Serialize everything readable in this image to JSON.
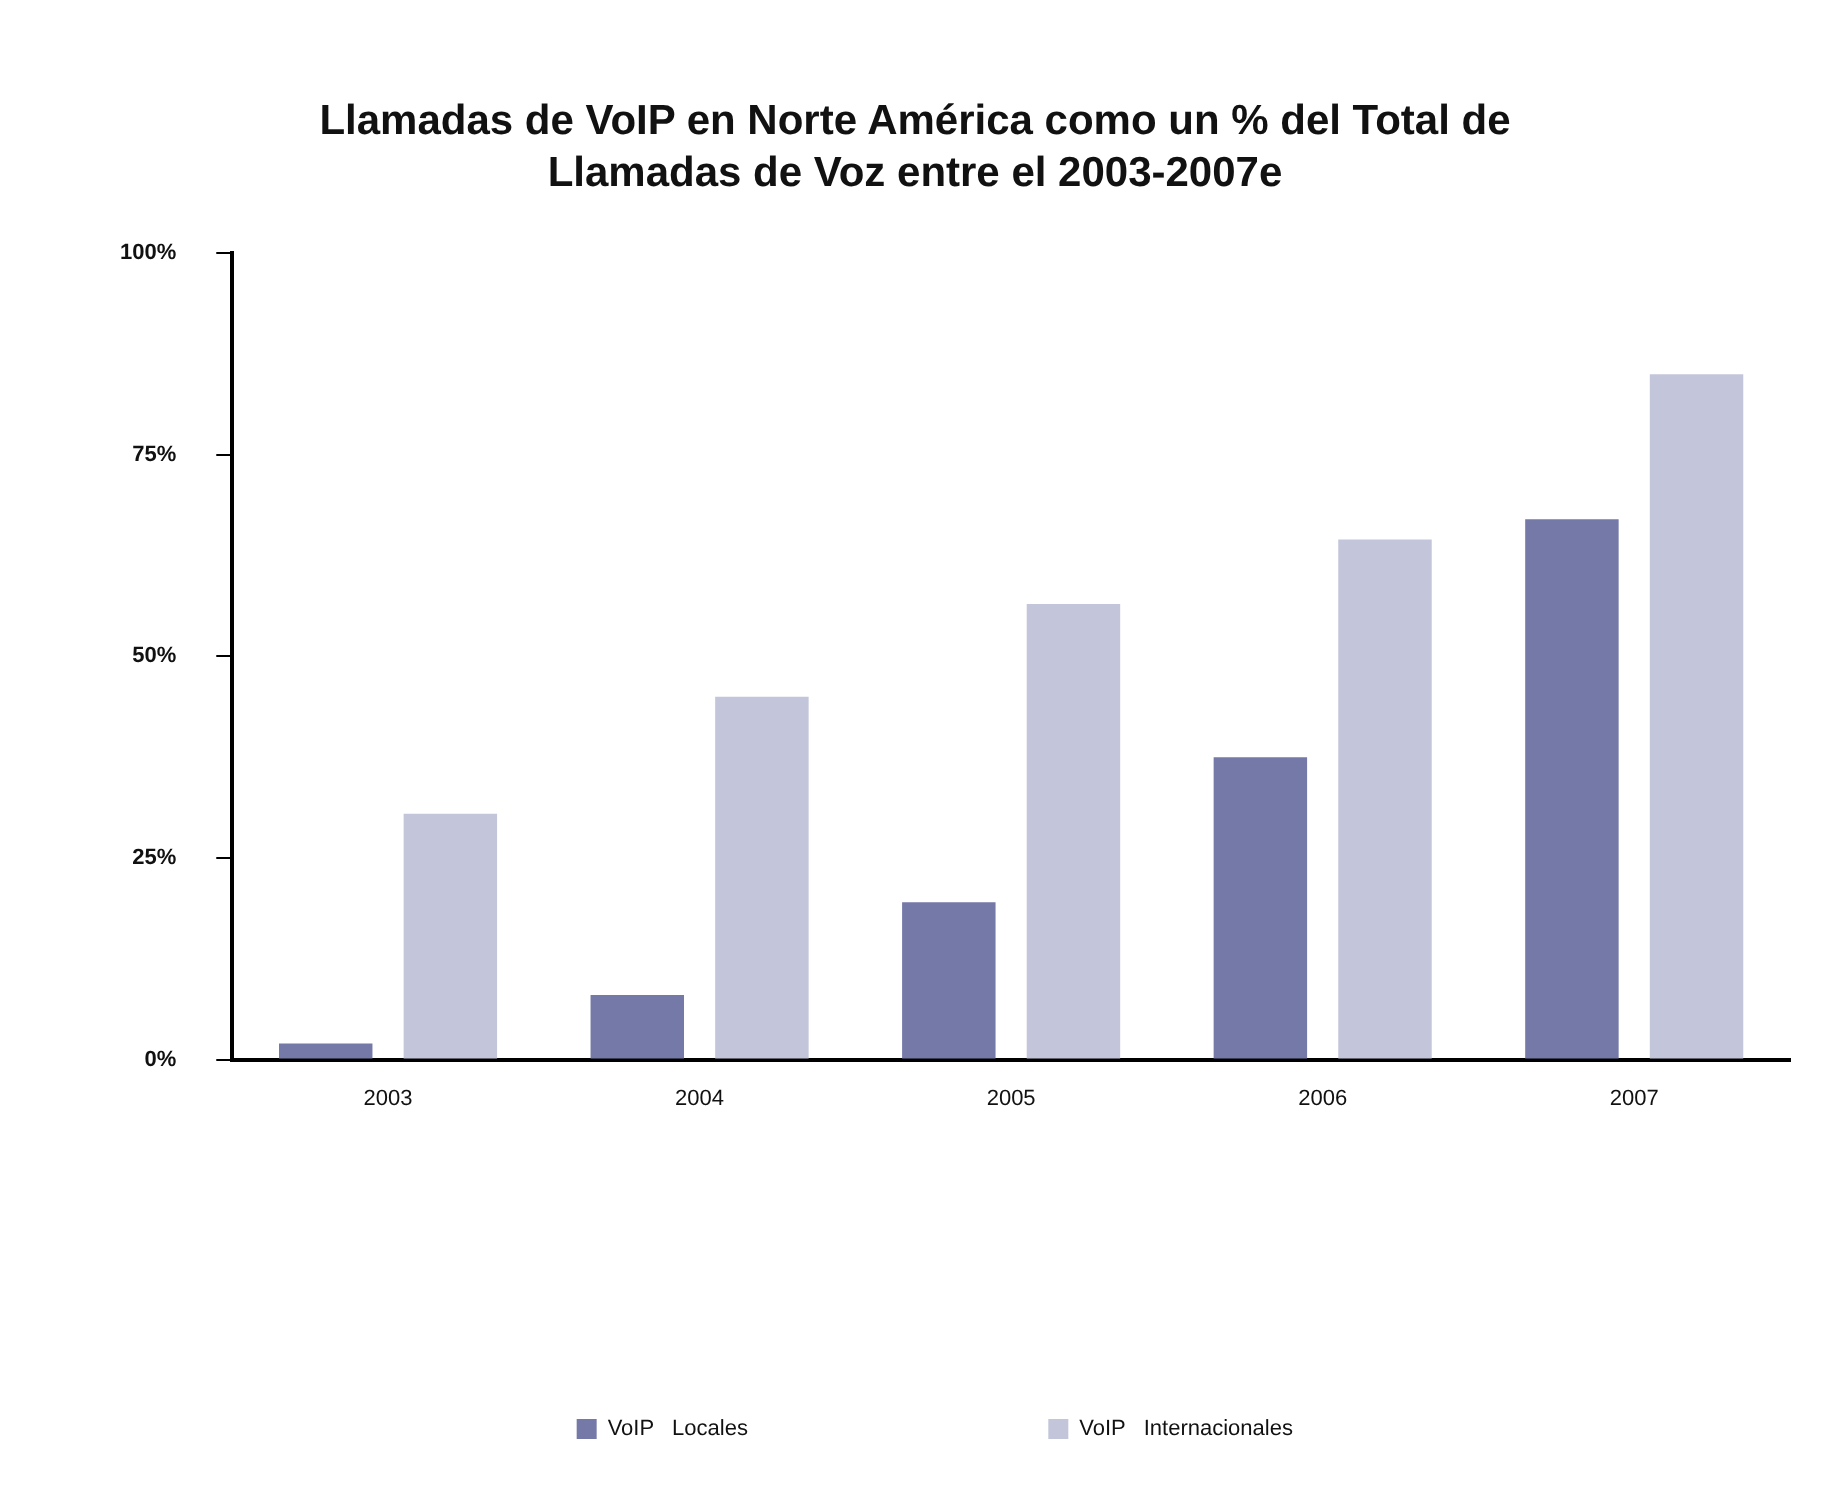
{
  "chart_data": {
    "type": "bar",
    "title": "Llamadas de VoIP en Norte América como un % del Total de Llamadas de Voz entre el 2003-2007e",
    "categories": [
      "2003",
      "2004",
      "2005",
      "2006",
      "2007"
    ],
    "series": [
      {
        "name": "VoIP   Locales",
        "color": "#7579a8",
        "values": [
          2,
          8,
          19.5,
          37.5,
          67
        ]
      },
      {
        "name": "VoIP   Internacionales",
        "color": "#c3c5da",
        "values": [
          30.5,
          45,
          56.5,
          64.5,
          85
        ]
      }
    ],
    "ylim": [
      0,
      100
    ],
    "yticks": [
      {
        "value": 0,
        "label": "0%"
      },
      {
        "value": 25,
        "label": "25%"
      },
      {
        "value": 50,
        "label": "50%"
      },
      {
        "value": 75,
        "label": "75%"
      },
      {
        "value": 100,
        "label": "100%"
      }
    ],
    "grid": false,
    "legend": "bottom"
  }
}
